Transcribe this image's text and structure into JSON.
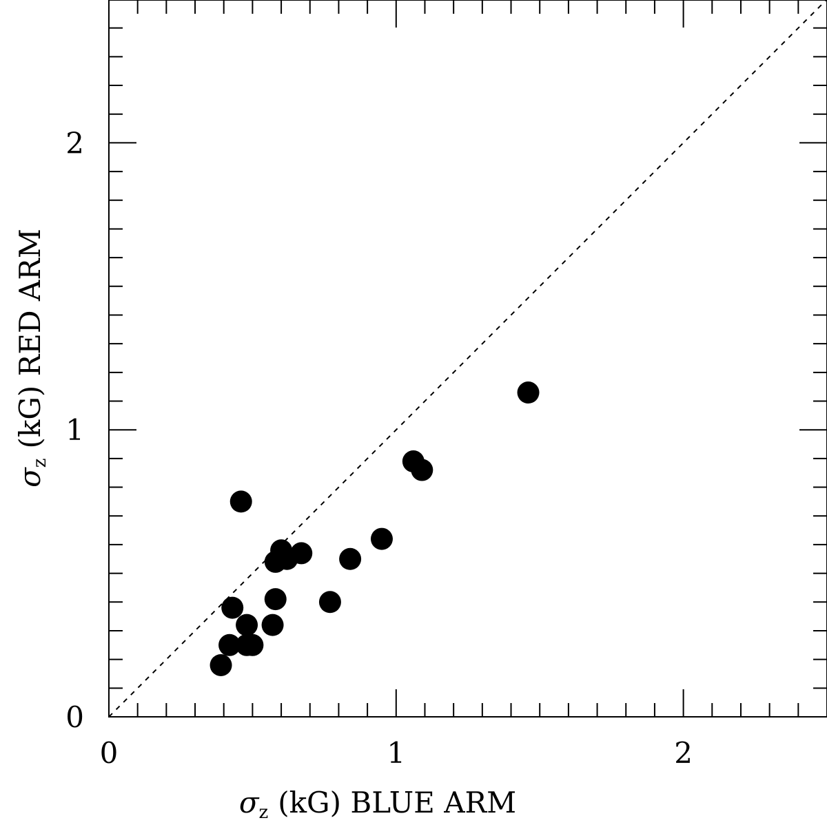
{
  "chart_data": {
    "type": "scatter",
    "title": "",
    "xlabel": {
      "symbol": "σ",
      "subscript": "z",
      "text": "(kG) BLUE ARM"
    },
    "ylabel": {
      "symbol": "σ",
      "subscript": "z",
      "text": "(kG) RED ARM"
    },
    "xlim": [
      0,
      2.5
    ],
    "ylim": [
      0,
      2.5
    ],
    "x_ticks": [
      {
        "value": 0,
        "label": "0"
      },
      {
        "value": 1,
        "label": "1"
      },
      {
        "value": 2,
        "label": "2"
      }
    ],
    "y_ticks": [
      {
        "value": 0,
        "label": "0"
      },
      {
        "value": 1,
        "label": "1"
      },
      {
        "value": 2,
        "label": "2"
      }
    ],
    "minor_tick_step": 0.1,
    "reference_line": {
      "style": "dashed",
      "slope": 1,
      "intercept": 0
    },
    "marker": {
      "shape": "filled-circle",
      "color": "#000000"
    },
    "grid": false,
    "points": [
      {
        "x": 0.39,
        "y": 0.18
      },
      {
        "x": 0.42,
        "y": 0.25
      },
      {
        "x": 0.43,
        "y": 0.38
      },
      {
        "x": 0.46,
        "y": 0.75
      },
      {
        "x": 0.48,
        "y": 0.32
      },
      {
        "x": 0.48,
        "y": 0.25
      },
      {
        "x": 0.5,
        "y": 0.25
      },
      {
        "x": 0.57,
        "y": 0.32
      },
      {
        "x": 0.58,
        "y": 0.54
      },
      {
        "x": 0.58,
        "y": 0.41
      },
      {
        "x": 0.6,
        "y": 0.58
      },
      {
        "x": 0.62,
        "y": 0.55
      },
      {
        "x": 0.67,
        "y": 0.57
      },
      {
        "x": 0.77,
        "y": 0.4
      },
      {
        "x": 0.84,
        "y": 0.55
      },
      {
        "x": 0.95,
        "y": 0.62
      },
      {
        "x": 1.06,
        "y": 0.89
      },
      {
        "x": 1.09,
        "y": 0.86
      },
      {
        "x": 1.46,
        "y": 1.13
      }
    ]
  }
}
